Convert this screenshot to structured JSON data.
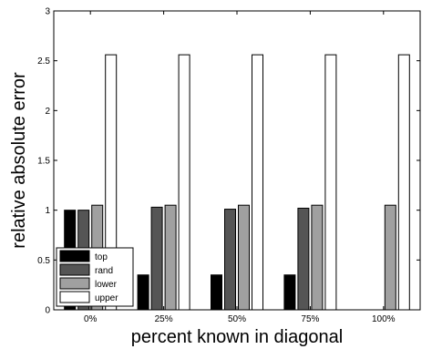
{
  "chart_data": {
    "type": "bar",
    "title": "",
    "xlabel": "percent known in diagonal",
    "ylabel": "relative absolute error",
    "categories": [
      "0%",
      "25%",
      "50%",
      "75%",
      "100%"
    ],
    "ylim": [
      0,
      3
    ],
    "yticks": [
      "0",
      "0.5",
      "1",
      "1.5",
      "2",
      "2.5",
      "3"
    ],
    "series": [
      {
        "name": "top",
        "values": [
          1.0,
          0.35,
          0.35,
          0.35,
          0.0
        ],
        "color": "#000000"
      },
      {
        "name": "rand",
        "values": [
          1.0,
          1.03,
          1.01,
          1.02,
          0.0
        ],
        "color": "#555555"
      },
      {
        "name": "lower",
        "values": [
          1.05,
          1.05,
          1.05,
          1.05,
          1.05
        ],
        "color": "#a0a0a0"
      },
      {
        "name": "upper",
        "values": [
          2.56,
          2.56,
          2.56,
          2.56,
          2.56
        ],
        "color": "#ffffff"
      }
    ],
    "grid": false,
    "legend_position": "bottom-left"
  }
}
